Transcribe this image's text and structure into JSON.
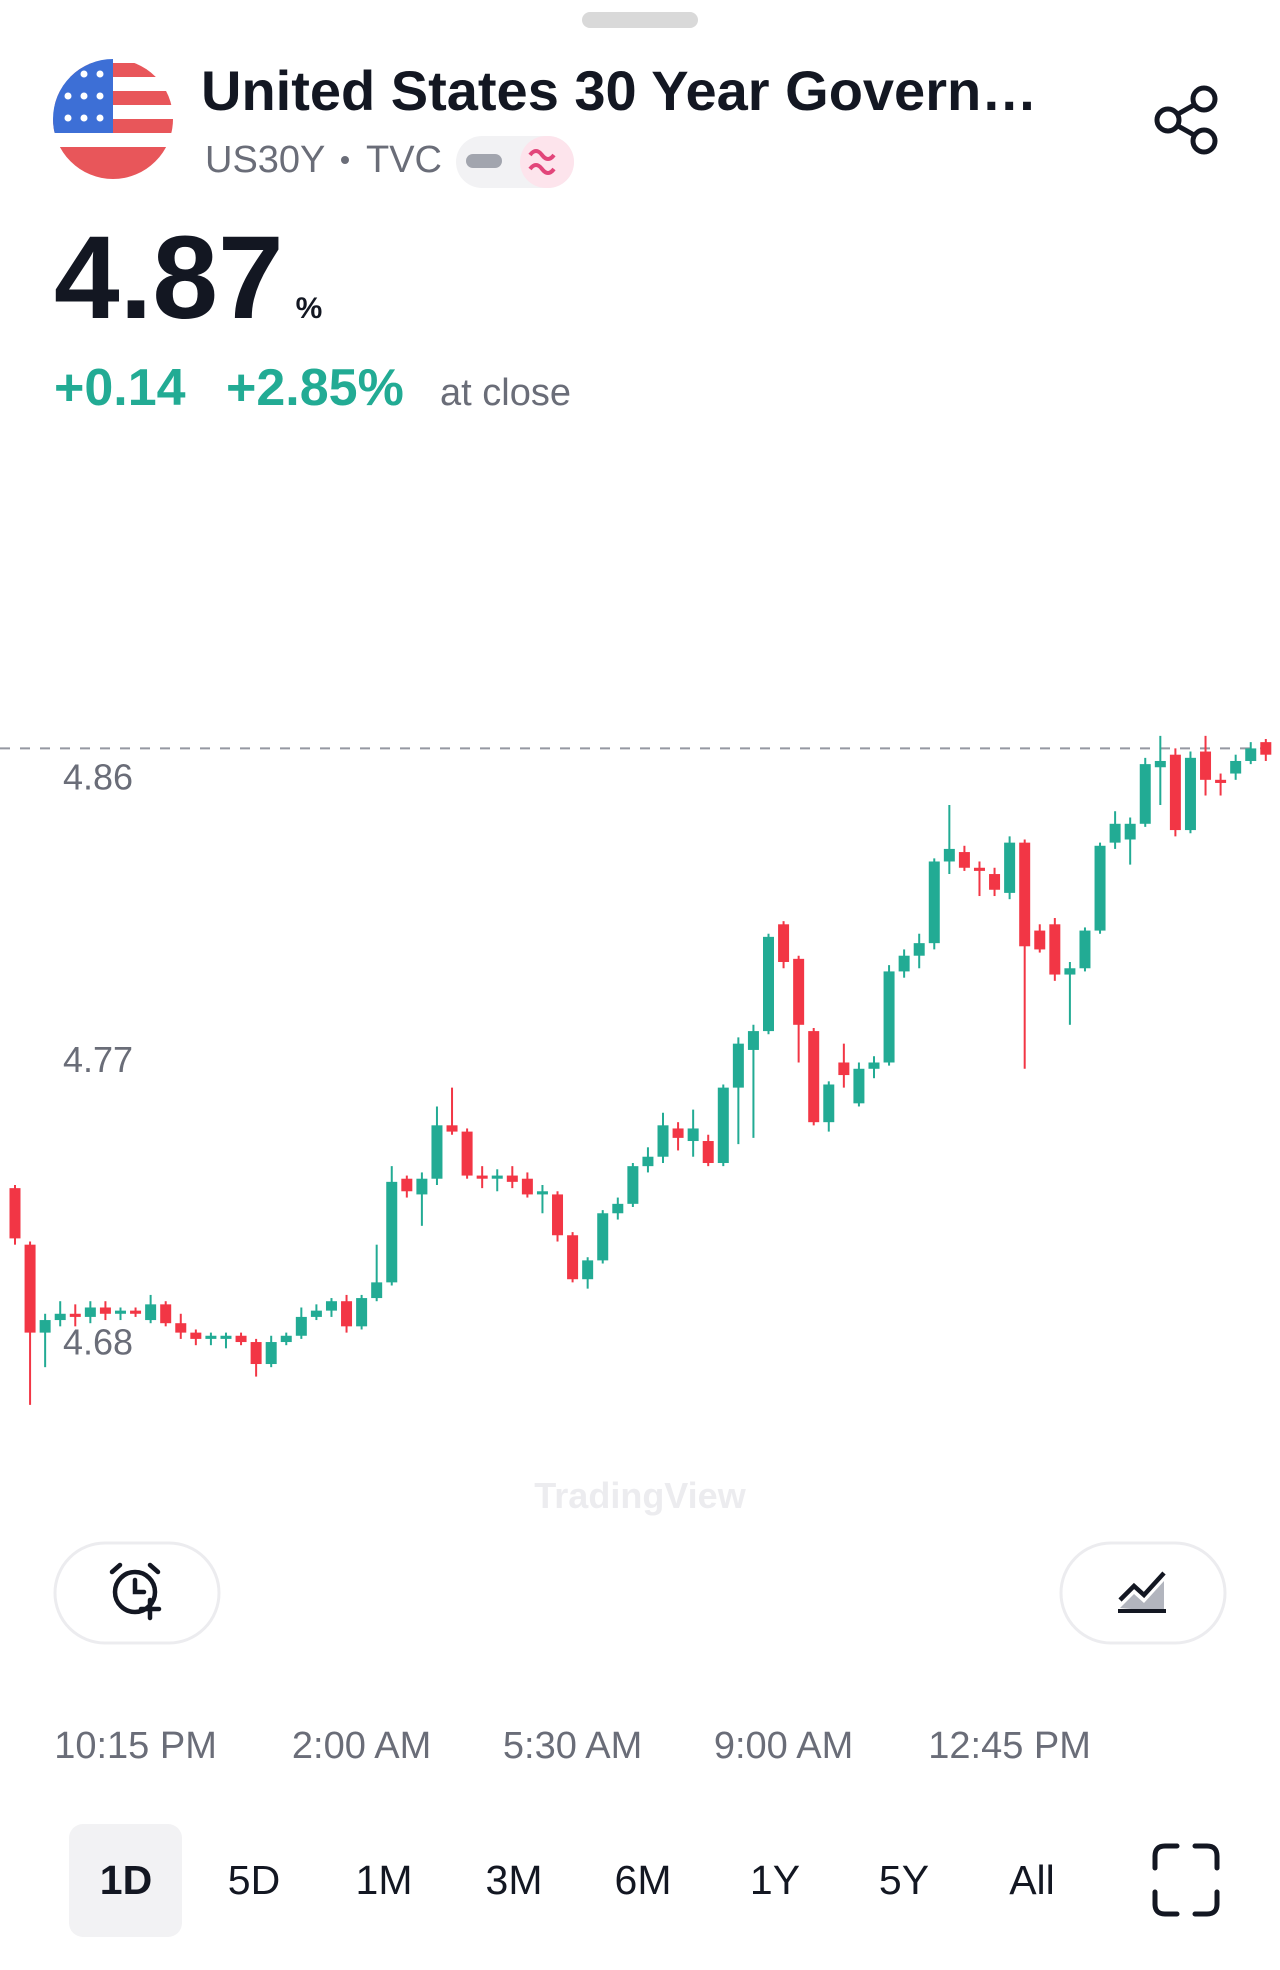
{
  "header": {
    "title": "United States 30 Year Govern…",
    "symbol": "US30Y",
    "exchange": "TVC",
    "price": 4.87,
    "price_unit": "%",
    "change": "+0.14",
    "change_percent": "+2.85%",
    "status": "at close"
  },
  "chart_data": {
    "type": "candlestick",
    "candles": {
      "open": [
        4.73,
        4.712,
        4.684,
        4.688,
        4.69,
        4.689,
        4.692,
        4.69,
        4.691,
        4.688,
        4.693,
        4.687,
        4.684,
        4.682,
        4.682,
        4.683,
        4.681,
        4.674,
        4.681,
        4.683,
        4.689,
        4.691,
        4.694,
        4.686,
        4.695,
        4.7,
        4.733,
        4.728,
        4.733,
        4.75,
        4.748,
        4.734,
        4.733,
        4.734,
        4.733,
        4.728,
        4.728,
        4.715,
        4.701,
        4.707,
        4.722,
        4.725,
        4.737,
        4.74,
        4.749,
        4.745,
        4.745,
        4.738,
        4.762,
        4.774,
        4.78,
        4.814,
        4.803,
        4.78,
        4.751,
        4.77,
        4.757,
        4.768,
        4.77,
        4.799,
        4.804,
        4.808,
        4.834,
        4.837,
        4.832,
        4.83,
        4.824,
        4.84,
        4.812,
        4.814,
        4.798,
        4.8,
        4.812,
        4.84,
        4.841,
        4.846,
        4.864,
        4.868,
        4.844,
        4.869,
        4.86,
        4.862,
        4.866,
        4.872
      ],
      "high": [
        4.731,
        4.713,
        4.69,
        4.694,
        4.693,
        4.694,
        4.694,
        4.692,
        4.692,
        4.696,
        4.694,
        4.69,
        4.685,
        4.684,
        4.684,
        4.684,
        4.682,
        4.683,
        4.684,
        4.692,
        4.693,
        4.695,
        4.696,
        4.696,
        4.712,
        4.737,
        4.734,
        4.735,
        4.756,
        4.762,
        4.749,
        4.737,
        4.736,
        4.737,
        4.735,
        4.731,
        4.729,
        4.716,
        4.708,
        4.723,
        4.727,
        4.738,
        4.743,
        4.754,
        4.751,
        4.755,
        4.747,
        4.763,
        4.778,
        4.782,
        4.811,
        4.815,
        4.804,
        4.781,
        4.764,
        4.776,
        4.77,
        4.772,
        4.801,
        4.806,
        4.811,
        4.835,
        4.852,
        4.839,
        4.834,
        4.832,
        4.842,
        4.841,
        4.814,
        4.816,
        4.802,
        4.813,
        4.84,
        4.85,
        4.848,
        4.867,
        4.874,
        4.87,
        4.869,
        4.874,
        4.862,
        4.868,
        4.872,
        4.873
      ],
      "low": [
        4.712,
        4.661,
        4.673,
        4.686,
        4.686,
        4.687,
        4.688,
        4.688,
        4.689,
        4.687,
        4.686,
        4.682,
        4.68,
        4.68,
        4.679,
        4.68,
        4.67,
        4.673,
        4.68,
        4.682,
        4.688,
        4.689,
        4.684,
        4.685,
        4.694,
        4.699,
        4.727,
        4.718,
        4.731,
        4.747,
        4.733,
        4.73,
        4.729,
        4.73,
        4.727,
        4.722,
        4.713,
        4.7,
        4.698,
        4.706,
        4.72,
        4.724,
        4.735,
        4.738,
        4.742,
        4.74,
        4.737,
        4.737,
        4.744,
        4.746,
        4.779,
        4.8,
        4.77,
        4.75,
        4.748,
        4.762,
        4.756,
        4.765,
        4.769,
        4.797,
        4.8,
        4.806,
        4.83,
        4.831,
        4.823,
        4.823,
        4.822,
        4.768,
        4.805,
        4.796,
        4.782,
        4.799,
        4.811,
        4.838,
        4.833,
        4.845,
        4.852,
        4.842,
        4.843,
        4.855,
        4.855,
        4.86,
        4.865,
        4.866
      ],
      "close": [
        4.714,
        4.684,
        4.688,
        4.69,
        4.689,
        4.692,
        4.69,
        4.691,
        4.69,
        4.693,
        4.687,
        4.684,
        4.682,
        4.683,
        4.683,
        4.681,
        4.674,
        4.681,
        4.683,
        4.689,
        4.691,
        4.694,
        4.686,
        4.695,
        4.7,
        4.732,
        4.729,
        4.733,
        4.75,
        4.748,
        4.734,
        4.733,
        4.734,
        4.732,
        4.728,
        4.729,
        4.715,
        4.701,
        4.707,
        4.722,
        4.725,
        4.737,
        4.74,
        4.75,
        4.746,
        4.749,
        4.738,
        4.762,
        4.776,
        4.78,
        4.81,
        4.802,
        4.782,
        4.751,
        4.763,
        4.766,
        4.768,
        4.77,
        4.799,
        4.804,
        4.808,
        4.834,
        4.838,
        4.832,
        4.831,
        4.825,
        4.84,
        4.807,
        4.806,
        4.798,
        4.8,
        4.812,
        4.839,
        4.846,
        4.846,
        4.865,
        4.866,
        4.844,
        4.867,
        4.86,
        4.859,
        4.866,
        4.87,
        4.868
      ]
    },
    "up_color": "#22ab94",
    "down_color": "#f23645",
    "ylim": [
      4.66,
      4.88
    ],
    "yticks": [
      4.68,
      4.77,
      4.86
    ],
    "xticks": [
      {
        "value": 8,
        "label": "10:15 PM"
      },
      {
        "value": 23,
        "label": "2:00 AM"
      },
      {
        "value": 37,
        "label": "5:30 AM"
      },
      {
        "value": 51,
        "label": "9:00 AM"
      },
      {
        "value": 66,
        "label": "12:45 PM"
      }
    ],
    "watermark": "TradingView"
  },
  "range_tabs": {
    "options": [
      "1D",
      "5D",
      "1M",
      "3M",
      "6M",
      "1Y",
      "5Y",
      "All"
    ],
    "selected": 0
  }
}
